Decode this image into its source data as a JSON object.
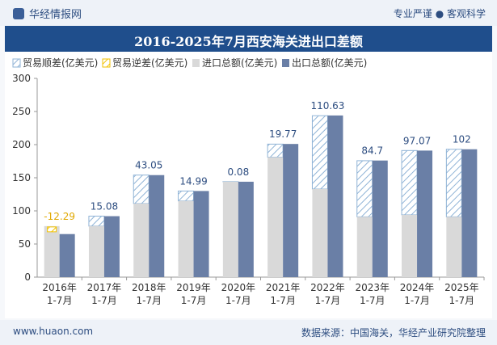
{
  "header": {
    "brand": "华经情报网",
    "tagline": "专业严谨 ● 客观科学"
  },
  "footer": {
    "site": "www.huaon.com",
    "source": "数据来源：中国海关，华经产业研究院整理"
  },
  "colors": {
    "title_bg": "#1f4e8c",
    "export": "#6a7fa6",
    "import": "#d9d9d9",
    "surplus_stroke": "#8fb3d6",
    "deficit_stroke": "#f2c200",
    "label_surplus": "#2d4d80",
    "label_deficit": "#e0a800"
  },
  "chart_data": {
    "type": "bar",
    "title": "2016-2025年7月西安海关进出口差额",
    "categories": [
      "2016年\n1-7月",
      "2017年\n1-7月",
      "2018年\n1-7月",
      "2019年\n1-7月",
      "2020年\n1-7月",
      "2021年\n1-7月",
      "2022年\n1-7月",
      "2023年\n1-7月",
      "2024年\n1-7月",
      "2025年\n1-7月"
    ],
    "legend": [
      "贸易顺差(亿美元)",
      "贸易逆差(亿美元)",
      "进口总额(亿美元)",
      "出口总额(亿美元)"
    ],
    "ylim": [
      0,
      300
    ],
    "yticks": [
      0,
      50,
      100,
      150,
      200,
      250,
      300
    ],
    "series": [
      {
        "name": "进口总额(亿美元)",
        "values": [
          77,
          77,
          111,
          115,
          144,
          181,
          133,
          91,
          94,
          91
        ]
      },
      {
        "name": "出口总额(亿美元)",
        "values": [
          65,
          92,
          154,
          130,
          144,
          201,
          244,
          176,
          191,
          193
        ]
      }
    ],
    "balance": [
      -12.29,
      15.08,
      43.05,
      14.99,
      0.08,
      19.77,
      110.63,
      84.7,
      97.07,
      102
    ],
    "balance_labels": [
      "-12.29",
      "15.08",
      "43.05",
      "14.99",
      "0.08",
      "19.77",
      "110.63",
      "84.7",
      "97.07",
      "102"
    ]
  }
}
